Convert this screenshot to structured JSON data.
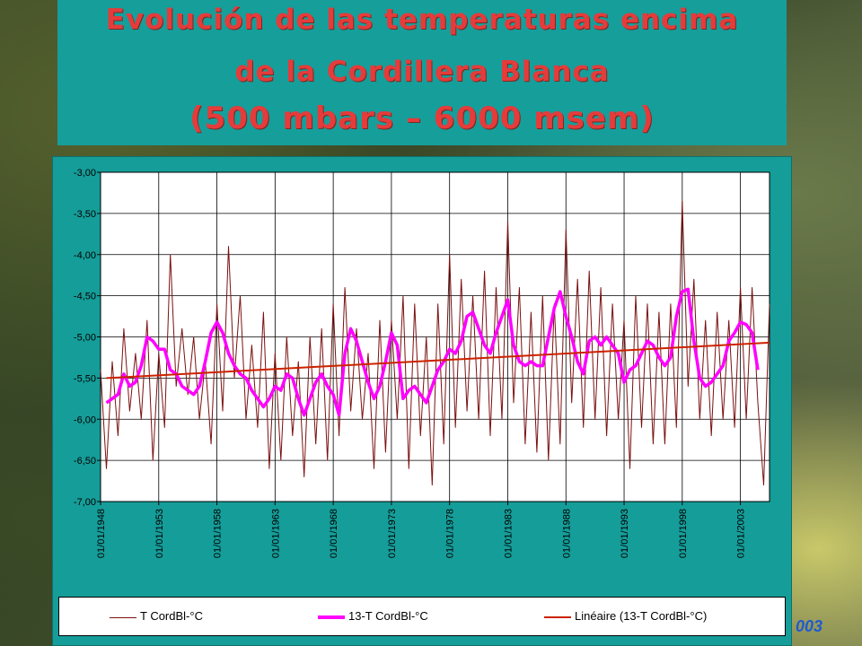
{
  "title": {
    "line1": "Evolución de las temperaturas encima",
    "line2": "de la Cordillera Blanca",
    "line3": "(500 mbars – 6000 msem)"
  },
  "corner_text": "003",
  "colors": {
    "panel": "#159d99",
    "title_text": "#e53b3b",
    "series_raw": "#7a1010",
    "series_smooth": "#ff00ff",
    "series_trend": "#cc2200"
  },
  "chart_data": {
    "type": "line",
    "title": "",
    "xlabel": "",
    "ylabel": "",
    "ylim": [
      -7.0,
      -3.0
    ],
    "yticks": [
      "-3,00",
      "-3,50",
      "-4,00",
      "-4,50",
      "-5,00",
      "-5,50",
      "-6,00",
      "-6,50",
      "-7,00"
    ],
    "xlim": [
      1948.0,
      2005.5
    ],
    "xtick_labels": [
      "01/01/1948",
      "01/01/1953",
      "01/01/1958",
      "01/01/1963",
      "01/01/1968",
      "01/01/1973",
      "01/01/1978",
      "01/01/1983",
      "01/01/1988",
      "01/01/1993",
      "01/01/1998",
      "01/01/2003"
    ],
    "grid": true,
    "legend_position": "bottom",
    "series": [
      {
        "name": "T CordBl-°C",
        "style": "thin-dark-red",
        "x": [
          1948.0,
          1948.5,
          1949.0,
          1949.5,
          1950.0,
          1950.5,
          1951.0,
          1951.5,
          1952.0,
          1952.5,
          1953.0,
          1953.5,
          1954.0,
          1954.5,
          1955.0,
          1955.5,
          1956.0,
          1956.5,
          1957.0,
          1957.5,
          1958.0,
          1958.5,
          1959.0,
          1959.5,
          1960.0,
          1960.5,
          1961.0,
          1961.5,
          1962.0,
          1962.5,
          1963.0,
          1963.5,
          1964.0,
          1964.5,
          1965.0,
          1965.5,
          1966.0,
          1966.5,
          1967.0,
          1967.5,
          1968.0,
          1968.5,
          1969.0,
          1969.5,
          1970.0,
          1970.5,
          1971.0,
          1971.5,
          1972.0,
          1972.5,
          1973.0,
          1973.5,
          1974.0,
          1974.5,
          1975.0,
          1975.5,
          1976.0,
          1976.5,
          1977.0,
          1977.5,
          1978.0,
          1978.5,
          1979.0,
          1979.5,
          1980.0,
          1980.5,
          1981.0,
          1981.5,
          1982.0,
          1982.5,
          1983.0,
          1983.5,
          1984.0,
          1984.5,
          1985.0,
          1985.5,
          1986.0,
          1986.5,
          1987.0,
          1987.5,
          1988.0,
          1988.5,
          1989.0,
          1989.5,
          1990.0,
          1990.5,
          1991.0,
          1991.5,
          1992.0,
          1992.5,
          1993.0,
          1993.5,
          1994.0,
          1994.5,
          1995.0,
          1995.5,
          1996.0,
          1996.5,
          1997.0,
          1997.5,
          1998.0,
          1998.5,
          1999.0,
          1999.5,
          2000.0,
          2000.5,
          2001.0,
          2001.5,
          2002.0,
          2002.5,
          2003.0,
          2003.5,
          2004.0,
          2004.5,
          2005.0,
          2005.5
        ],
        "y": [
          -5.4,
          -6.6,
          -5.3,
          -6.2,
          -4.9,
          -5.9,
          -5.2,
          -6.0,
          -4.8,
          -6.5,
          -5.2,
          -6.1,
          -4.0,
          -5.6,
          -4.9,
          -5.7,
          -5.0,
          -6.0,
          -5.3,
          -6.3,
          -4.6,
          -5.9,
          -3.9,
          -5.5,
          -4.5,
          -6.0,
          -5.1,
          -6.1,
          -4.7,
          -6.6,
          -5.2,
          -6.5,
          -5.0,
          -6.2,
          -5.3,
          -6.7,
          -5.0,
          -6.3,
          -4.9,
          -6.5,
          -4.6,
          -6.2,
          -4.4,
          -5.9,
          -4.9,
          -6.0,
          -5.2,
          -6.6,
          -4.8,
          -6.4,
          -4.8,
          -6.0,
          -4.5,
          -6.6,
          -4.6,
          -6.2,
          -5.0,
          -6.8,
          -4.6,
          -6.3,
          -4.0,
          -6.1,
          -4.3,
          -5.9,
          -4.5,
          -6.0,
          -4.2,
          -6.2,
          -4.4,
          -6.0,
          -3.6,
          -5.8,
          -4.4,
          -6.3,
          -4.7,
          -6.4,
          -4.5,
          -6.5,
          -4.6,
          -6.3,
          -3.7,
          -5.8,
          -4.3,
          -6.1,
          -4.2,
          -6.0,
          -4.4,
          -6.2,
          -4.6,
          -6.0,
          -4.8,
          -6.6,
          -4.5,
          -6.1,
          -4.6,
          -6.3,
          -4.7,
          -6.3,
          -4.6,
          -6.1,
          -3.35,
          -5.6,
          -4.3,
          -6.0,
          -4.8,
          -6.2,
          -4.7,
          -6.0,
          -4.8,
          -6.1,
          -4.4,
          -6.0,
          -4.4,
          -5.8,
          -6.8,
          -4.6
        ]
      },
      {
        "name": "13-T CordBl-°C",
        "style": "thick-magenta",
        "x": [
          1948.5,
          1949.0,
          1949.5,
          1950.0,
          1950.5,
          1951.0,
          1951.5,
          1952.0,
          1952.5,
          1953.0,
          1953.5,
          1954.0,
          1954.5,
          1955.0,
          1955.5,
          1956.0,
          1956.5,
          1957.0,
          1957.5,
          1958.0,
          1958.5,
          1959.0,
          1959.5,
          1960.0,
          1960.5,
          1961.0,
          1961.5,
          1962.0,
          1962.5,
          1963.0,
          1963.5,
          1964.0,
          1964.5,
          1965.0,
          1965.5,
          1966.0,
          1966.5,
          1967.0,
          1967.5,
          1968.0,
          1968.5,
          1969.0,
          1969.5,
          1970.0,
          1970.5,
          1971.0,
          1971.5,
          1972.0,
          1972.5,
          1973.0,
          1973.5,
          1974.0,
          1974.5,
          1975.0,
          1975.5,
          1976.0,
          1976.5,
          1977.0,
          1977.5,
          1978.0,
          1978.5,
          1979.0,
          1979.5,
          1980.0,
          1980.5,
          1981.0,
          1981.5,
          1982.0,
          1982.5,
          1983.0,
          1983.5,
          1984.0,
          1984.5,
          1985.0,
          1985.5,
          1986.0,
          1986.5,
          1987.0,
          1987.5,
          1988.0,
          1988.5,
          1989.0,
          1989.5,
          1990.0,
          1990.5,
          1991.0,
          1991.5,
          1992.0,
          1992.5,
          1993.0,
          1993.5,
          1994.0,
          1994.5,
          1995.0,
          1995.5,
          1996.0,
          1996.5,
          1997.0,
          1997.5,
          1998.0,
          1998.5,
          1999.0,
          1999.5,
          2000.0,
          2000.5,
          2001.0,
          2001.5,
          2002.0,
          2002.5,
          2003.0,
          2003.5,
          2004.0,
          2004.5
        ],
        "y": [
          -5.8,
          -5.75,
          -5.7,
          -5.45,
          -5.6,
          -5.55,
          -5.35,
          -5.0,
          -5.05,
          -5.15,
          -5.15,
          -5.4,
          -5.45,
          -5.6,
          -5.65,
          -5.7,
          -5.6,
          -5.3,
          -4.95,
          -4.82,
          -4.95,
          -5.2,
          -5.35,
          -5.45,
          -5.5,
          -5.65,
          -5.75,
          -5.85,
          -5.75,
          -5.6,
          -5.65,
          -5.45,
          -5.5,
          -5.75,
          -5.95,
          -5.75,
          -5.55,
          -5.45,
          -5.6,
          -5.7,
          -5.95,
          -5.2,
          -4.9,
          -5.05,
          -5.3,
          -5.55,
          -5.75,
          -5.6,
          -5.3,
          -4.95,
          -5.1,
          -5.75,
          -5.65,
          -5.6,
          -5.7,
          -5.8,
          -5.6,
          -5.4,
          -5.3,
          -5.15,
          -5.2,
          -5.05,
          -4.75,
          -4.7,
          -4.9,
          -5.1,
          -5.2,
          -4.95,
          -4.75,
          -4.55,
          -5.1,
          -5.3,
          -5.35,
          -5.3,
          -5.35,
          -5.35,
          -5.0,
          -4.65,
          -4.45,
          -4.75,
          -5.0,
          -5.3,
          -5.45,
          -5.05,
          -5.0,
          -5.1,
          -5.0,
          -5.1,
          -5.2,
          -5.55,
          -5.4,
          -5.35,
          -5.2,
          -5.05,
          -5.1,
          -5.25,
          -5.35,
          -5.25,
          -4.75,
          -4.45,
          -4.42,
          -5.05,
          -5.5,
          -5.6,
          -5.55,
          -5.45,
          -5.35,
          -5.05,
          -4.95,
          -4.82,
          -4.85,
          -4.95,
          -5.4
        ]
      },
      {
        "name": "Linéaire (13-T CordBl-°C)",
        "style": "red-trend",
        "x": [
          1948.5,
          2005.5
        ],
        "y": [
          -5.5,
          -5.07
        ]
      }
    ]
  }
}
